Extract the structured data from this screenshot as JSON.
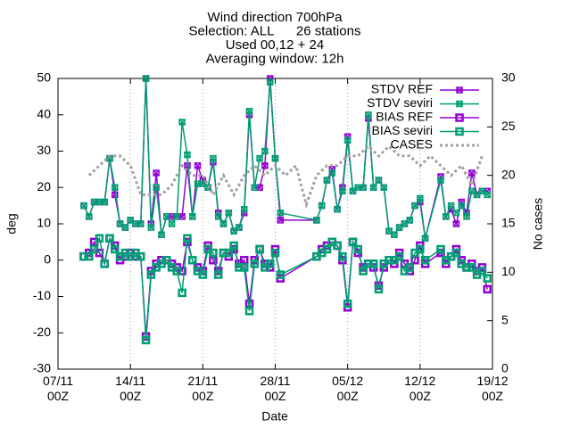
{
  "chart_data": {
    "type": "line",
    "title": [
      "Wind direction 700hPa",
      "Selection: ALL      26 stations",
      "Used 00,12 + 24",
      "Averaging window: 12h"
    ],
    "xlabel": "Date",
    "ylabel": "deg",
    "y2label": "No cases",
    "xlim": [
      "07/11 00Z",
      "19/12 00Z"
    ],
    "xticks": [
      "07/11 00Z",
      "14/11 00Z",
      "21/11 00Z",
      "28/11 00Z",
      "05/12 00Z",
      "12/12 00Z",
      "19/12 00Z"
    ],
    "ylim": [
      -30,
      50
    ],
    "yticks": [
      -30,
      -20,
      -10,
      0,
      10,
      20,
      30,
      40,
      50
    ],
    "y2lim": [
      0,
      30
    ],
    "y2ticks": [
      0,
      5,
      10,
      15,
      20,
      25,
      30
    ],
    "grid": "x",
    "legend": "top-right",
    "x": [
      "09/11 12Z",
      "10/11 00Z",
      "10/11 12Z",
      "11/11 00Z",
      "11/11 12Z",
      "12/11 00Z",
      "12/11 12Z",
      "13/11 00Z",
      "13/11 12Z",
      "14/11 00Z",
      "14/11 12Z",
      "15/11 00Z",
      "15/11 12Z",
      "16/11 00Z",
      "16/11 12Z",
      "17/11 00Z",
      "17/11 12Z",
      "18/11 00Z",
      "18/11 12Z",
      "19/11 00Z",
      "19/11 12Z",
      "20/11 00Z",
      "20/11 12Z",
      "21/11 00Z",
      "21/11 12Z",
      "22/11 00Z",
      "22/11 12Z",
      "23/11 00Z",
      "23/11 12Z",
      "24/11 00Z",
      "24/11 12Z",
      "25/11 00Z",
      "25/11 12Z",
      "26/11 00Z",
      "26/11 12Z",
      "27/11 00Z",
      "27/11 12Z",
      "28/11 00Z",
      "28/11 12Z",
      "02/12 00Z",
      "02/12 12Z",
      "03/12 00Z",
      "03/12 12Z",
      "04/12 00Z",
      "04/12 12Z",
      "05/12 00Z",
      "05/12 12Z",
      "06/12 00Z",
      "06/12 12Z",
      "07/12 00Z",
      "07/12 12Z",
      "08/12 00Z",
      "08/12 12Z",
      "09/12 00Z",
      "09/12 12Z",
      "10/12 00Z",
      "10/12 12Z",
      "11/12 00Z",
      "11/12 12Z",
      "12/12 00Z",
      "12/12 12Z",
      "14/12 00Z",
      "14/12 12Z",
      "15/12 00Z",
      "15/12 12Z",
      "16/12 00Z",
      "16/12 12Z",
      "17/12 00Z",
      "17/12 12Z",
      "18/12 00Z",
      "18/12 12Z"
    ],
    "series": [
      {
        "name": "STDV REF",
        "color": "#9400d3",
        "marker": "cross",
        "values": [
          15,
          12,
          16,
          16,
          16,
          28,
          18,
          10,
          9,
          11,
          10,
          10,
          50,
          10,
          24,
          7,
          12,
          12,
          12,
          12,
          26,
          12,
          26,
          22,
          20,
          27,
          13,
          10,
          13,
          8,
          9,
          13,
          40,
          20,
          20,
          26,
          50,
          28,
          11,
          11,
          15,
          22,
          25,
          14,
          20,
          34,
          19,
          20,
          20,
          39,
          20,
          22,
          20,
          8,
          7,
          9,
          10,
          11,
          15,
          16,
          6,
          23,
          12,
          14,
          10,
          16,
          13,
          24,
          18,
          19,
          19
        ]
      },
      {
        "name": "STDV seviri",
        "color": "#009e73",
        "marker": "cross",
        "values": [
          15,
          12,
          16,
          16,
          16,
          28,
          20,
          10,
          9,
          11,
          10,
          10,
          50,
          9,
          20,
          7,
          12,
          10,
          12,
          38,
          29,
          12,
          21,
          21,
          20,
          28,
          12,
          10,
          13,
          8,
          9,
          14,
          41,
          20,
          28,
          30,
          49,
          28,
          13,
          11,
          15,
          22,
          24,
          14,
          19,
          33,
          19,
          20,
          20,
          40,
          20,
          22,
          20,
          8,
          7,
          9,
          10,
          11,
          15,
          17,
          6,
          22,
          12,
          15,
          13,
          15,
          12,
          19,
          18,
          19,
          18
        ]
      },
      {
        "name": "BIAS REF",
        "color": "#9400d3",
        "marker": "square",
        "values": [
          1,
          2,
          5,
          2,
          -1,
          6,
          4,
          0,
          1,
          2,
          1,
          1,
          -21,
          -3,
          -1,
          0,
          0,
          -1,
          -2,
          -3,
          5,
          0,
          -2,
          -3,
          4,
          0,
          -3,
          2,
          1,
          3,
          -1,
          0,
          -12,
          0,
          3,
          -1,
          -2,
          3,
          -5,
          1,
          3,
          4,
          5,
          4,
          0,
          -13,
          5,
          2,
          -2,
          -1,
          -2,
          -7,
          -2,
          0,
          -1,
          2,
          -1,
          -3,
          0,
          4,
          -1,
          2,
          -1,
          1,
          3,
          0,
          -2,
          -1,
          -3,
          -2,
          -8
        ]
      },
      {
        "name": "BIAS seviri",
        "color": "#009e73",
        "marker": "square",
        "values": [
          1,
          1,
          3,
          6,
          -1,
          6,
          3,
          1,
          2,
          1,
          2,
          1,
          -22,
          -4,
          -2,
          -1,
          0,
          -2,
          -3,
          -9,
          6,
          0,
          -3,
          -4,
          3,
          2,
          -4,
          2,
          2,
          4,
          -2,
          -2,
          -14,
          -1,
          3,
          -2,
          -1,
          2,
          -4,
          1,
          2,
          3,
          5,
          4,
          1,
          -12,
          5,
          3,
          -3,
          -1,
          -1,
          -8,
          -1,
          0,
          0,
          1,
          -3,
          -2,
          2,
          3,
          0,
          3,
          0,
          1,
          2,
          -1,
          -2,
          -2,
          -4,
          -3,
          -5
        ]
      },
      {
        "name": "CASES",
        "color": "#a0a0a0",
        "marker": "none",
        "axis": "y2",
        "x": [
          "10/11 00Z",
          "11/11 00Z",
          "12/11 00Z",
          "13/11 00Z",
          "14/11 00Z",
          "15/11 00Z",
          "16/11 00Z",
          "17/11 00Z",
          "18/11 00Z",
          "19/11 00Z",
          "20/11 00Z",
          "21/11 00Z",
          "22/11 00Z",
          "23/11 00Z",
          "24/11 00Z",
          "25/11 00Z",
          "26/11 00Z",
          "27/11 00Z",
          "28/11 00Z",
          "29/11 00Z",
          "30/11 00Z",
          "01/12 00Z",
          "02/12 00Z",
          "03/12 00Z",
          "04/12 00Z",
          "05/12 00Z",
          "06/12 00Z",
          "07/12 00Z",
          "08/12 00Z",
          "09/12 00Z",
          "10/12 00Z",
          "11/12 00Z",
          "12/12 00Z",
          "13/12 00Z",
          "14/12 00Z",
          "15/12 00Z",
          "16/12 00Z",
          "17/12 00Z",
          "18/12 00Z"
        ],
        "values": [
          20,
          21,
          22,
          22,
          21,
          18,
          18,
          18,
          19,
          21,
          20,
          20,
          18,
          20,
          18,
          20,
          21,
          20,
          21,
          20,
          21,
          17,
          20,
          21,
          21,
          22,
          22,
          23,
          22,
          23,
          22,
          22,
          21,
          22,
          21,
          20,
          21,
          19,
          22
        ]
      }
    ]
  }
}
